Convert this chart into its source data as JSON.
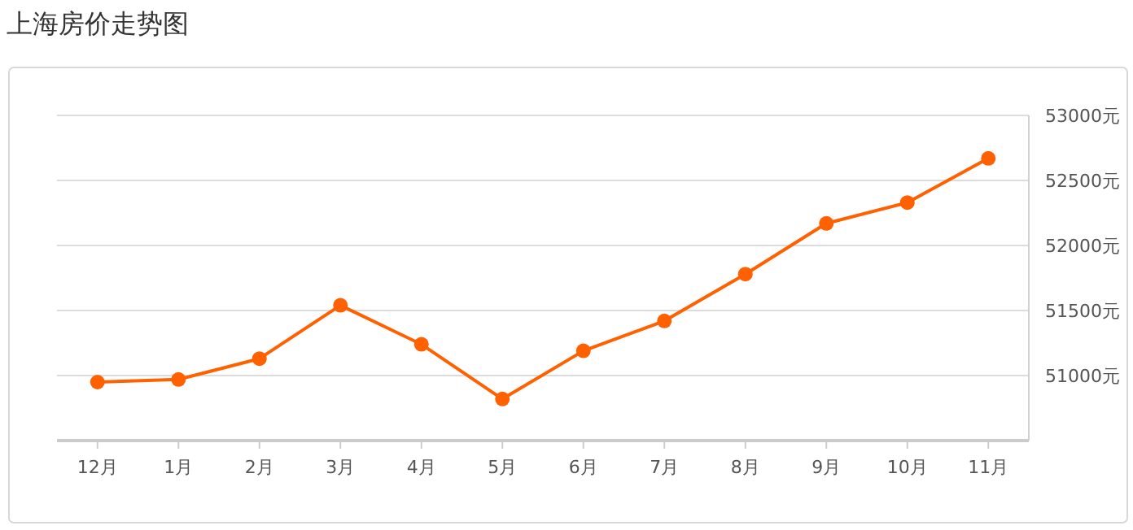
{
  "chart_data": {
    "type": "line",
    "title": "上海房价走势图",
    "categories": [
      "12月",
      "1月",
      "2月",
      "3月",
      "4月",
      "5月",
      "6月",
      "7月",
      "8月",
      "9月",
      "10月",
      "11月"
    ],
    "series": [
      {
        "color": "#ff6100",
        "values": [
          50950,
          50970,
          51130,
          51540,
          51240,
          50820,
          51190,
          51420,
          51780,
          52170,
          52330,
          52670
        ]
      }
    ],
    "ylim": [
      50500,
      53000
    ],
    "yticks": [
      {
        "value": 51000,
        "label": "51000元"
      },
      {
        "value": 51500,
        "label": "51500元"
      },
      {
        "value": 52000,
        "label": "52000元"
      },
      {
        "value": 52500,
        "label": "52500元"
      },
      {
        "value": 53000,
        "label": "53000元"
      }
    ],
    "grid": "y",
    "marker": "circle",
    "line_style": "solid"
  }
}
